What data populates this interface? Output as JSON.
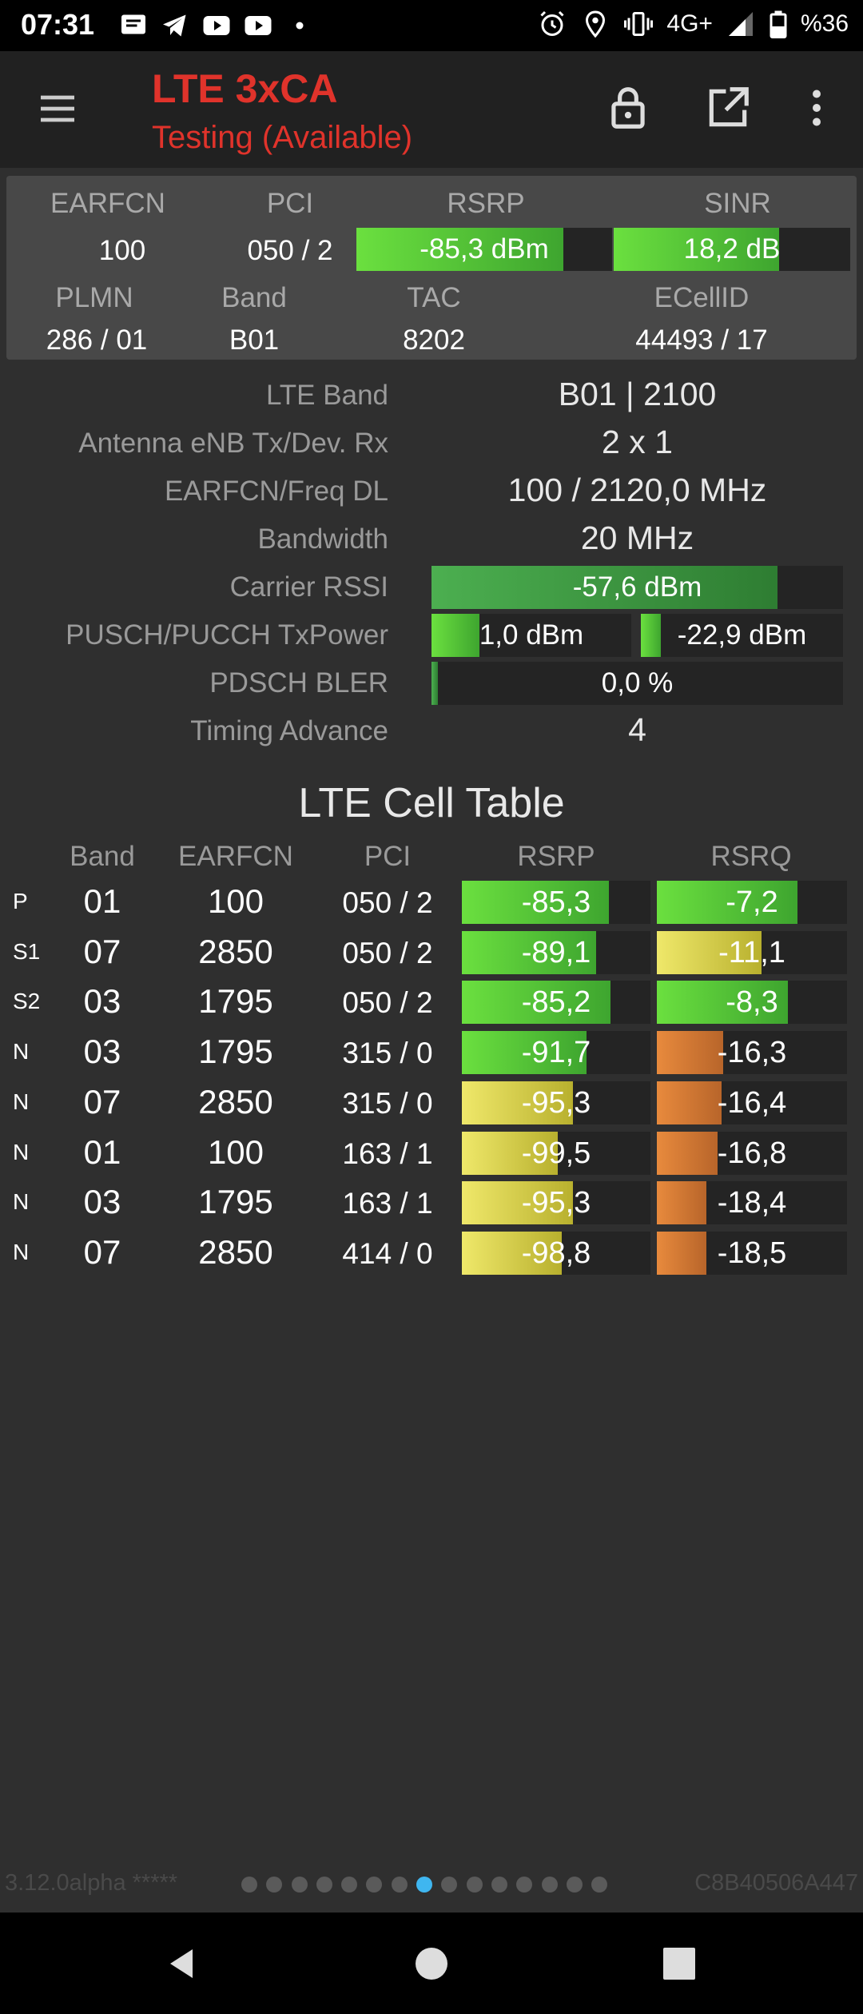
{
  "status": {
    "time": "07:31",
    "network": "4G+",
    "battery": "%36",
    "left_icons": [
      "message-icon",
      "telegram-icon",
      "youtube-icon",
      "youtube-icon",
      "dot-icon"
    ],
    "right_icons": [
      "alarm-icon",
      "location-icon",
      "vibrate-icon",
      "signal-icon",
      "battery-icon"
    ]
  },
  "appbar": {
    "title": "LTE 3xCA",
    "subtitle": "Testing (Available)",
    "actions": [
      "lock-icon",
      "open-external-icon",
      "more-vert-icon"
    ]
  },
  "summary": {
    "labels": {
      "earfcn": "EARFCN",
      "pci": "PCI",
      "rsrp": "RSRP",
      "sinr": "SINR",
      "plmn": "PLMN",
      "band": "Band",
      "tac": "TAC",
      "ecellid": "ECellID"
    },
    "earfcn": "100",
    "pci": "050 / 2",
    "rsrp": "-85,3 dBm",
    "rsrp_level": 0.81,
    "sinr": "18,2 dB",
    "sinr_level": 0.7,
    "plmn": "286 / 01",
    "band": "B01",
    "tac": "8202",
    "ecellid": "44493 / 17"
  },
  "details": {
    "lte_band_label": "LTE Band",
    "lte_band": "B01 | 2100",
    "antenna_label": "Antenna eNB Tx/Dev. Rx",
    "antenna": "2 x 1",
    "earfcn_label": "EARFCN/Freq DL",
    "earfcn": "100 / 2120,0 MHz",
    "bandwidth_label": "Bandwidth",
    "bandwidth": "20 MHz",
    "rssi_label": "Carrier RSSI",
    "rssi": "-57,6 dBm",
    "rssi_level": 0.84,
    "txpower_label": "PUSCH/PUCCH TxPower",
    "pusch": "1,0 dBm",
    "pusch_level": 0.24,
    "pucch": "-22,9 dBm",
    "pucch_level": 0.1,
    "bler_label": "PDSCH BLER",
    "bler": "0,0 %",
    "bler_level": 0.015,
    "ta_label": "Timing Advance",
    "ta": "4"
  },
  "cell_table": {
    "title": "LTE Cell Table",
    "headers": {
      "band": "Band",
      "earfcn": "EARFCN",
      "pci": "PCI",
      "rsrp": "RSRP",
      "rsrq": "RSRQ"
    },
    "rows": [
      {
        "type": "P",
        "band": "01",
        "earfcn": "100",
        "pci": "050 / 2",
        "rsrp": "-85,3",
        "rsrp_level": 0.78,
        "rsrp_color": "green",
        "rsrq": "-7,2",
        "rsrq_level": 0.74,
        "rsrq_color": "green"
      },
      {
        "type": "S1",
        "band": "07",
        "earfcn": "2850",
        "pci": "050 / 2",
        "rsrp": "-89,1",
        "rsrp_level": 0.71,
        "rsrp_color": "green",
        "rsrq": "-11,1",
        "rsrq_level": 0.55,
        "rsrq_color": "yellow"
      },
      {
        "type": "S2",
        "band": "03",
        "earfcn": "1795",
        "pci": "050 / 2",
        "rsrp": "-85,2",
        "rsrp_level": 0.79,
        "rsrp_color": "green",
        "rsrq": "-8,3",
        "rsrq_level": 0.69,
        "rsrq_color": "green"
      },
      {
        "type": "N",
        "band": "03",
        "earfcn": "1795",
        "pci": "315 / 0",
        "rsrp": "-91,7",
        "rsrp_level": 0.66,
        "rsrp_color": "green",
        "rsrq": "-16,3",
        "rsrq_level": 0.35,
        "rsrq_color": "orange"
      },
      {
        "type": "N",
        "band": "07",
        "earfcn": "2850",
        "pci": "315 / 0",
        "rsrp": "-95,3",
        "rsrp_level": 0.59,
        "rsrp_color": "yellow",
        "rsrq": "-16,4",
        "rsrq_level": 0.34,
        "rsrq_color": "orange"
      },
      {
        "type": "N",
        "band": "01",
        "earfcn": "100",
        "pci": "163 / 1",
        "rsrp": "-99,5",
        "rsrp_level": 0.51,
        "rsrp_color": "yellow",
        "rsrq": "-16,8",
        "rsrq_level": 0.32,
        "rsrq_color": "orange"
      },
      {
        "type": "N",
        "band": "03",
        "earfcn": "1795",
        "pci": "163 / 1",
        "rsrp": "-95,3",
        "rsrp_level": 0.59,
        "rsrp_color": "yellow",
        "rsrq": "-18,4",
        "rsrq_level": 0.26,
        "rsrq_color": "orange"
      },
      {
        "type": "N",
        "band": "07",
        "earfcn": "2850",
        "pci": "414 / 0",
        "rsrp": "-98,8",
        "rsrp_level": 0.53,
        "rsrp_color": "yellow",
        "rsrq": "-18,5",
        "rsrq_level": 0.26,
        "rsrq_color": "orange"
      }
    ]
  },
  "footer": {
    "version": "3.12.0alpha *****",
    "cell_id": "C8B40506A447",
    "pages": 15,
    "active_page": 8
  },
  "navbar": {
    "buttons": [
      "back-icon",
      "home-icon",
      "recents-icon"
    ]
  }
}
